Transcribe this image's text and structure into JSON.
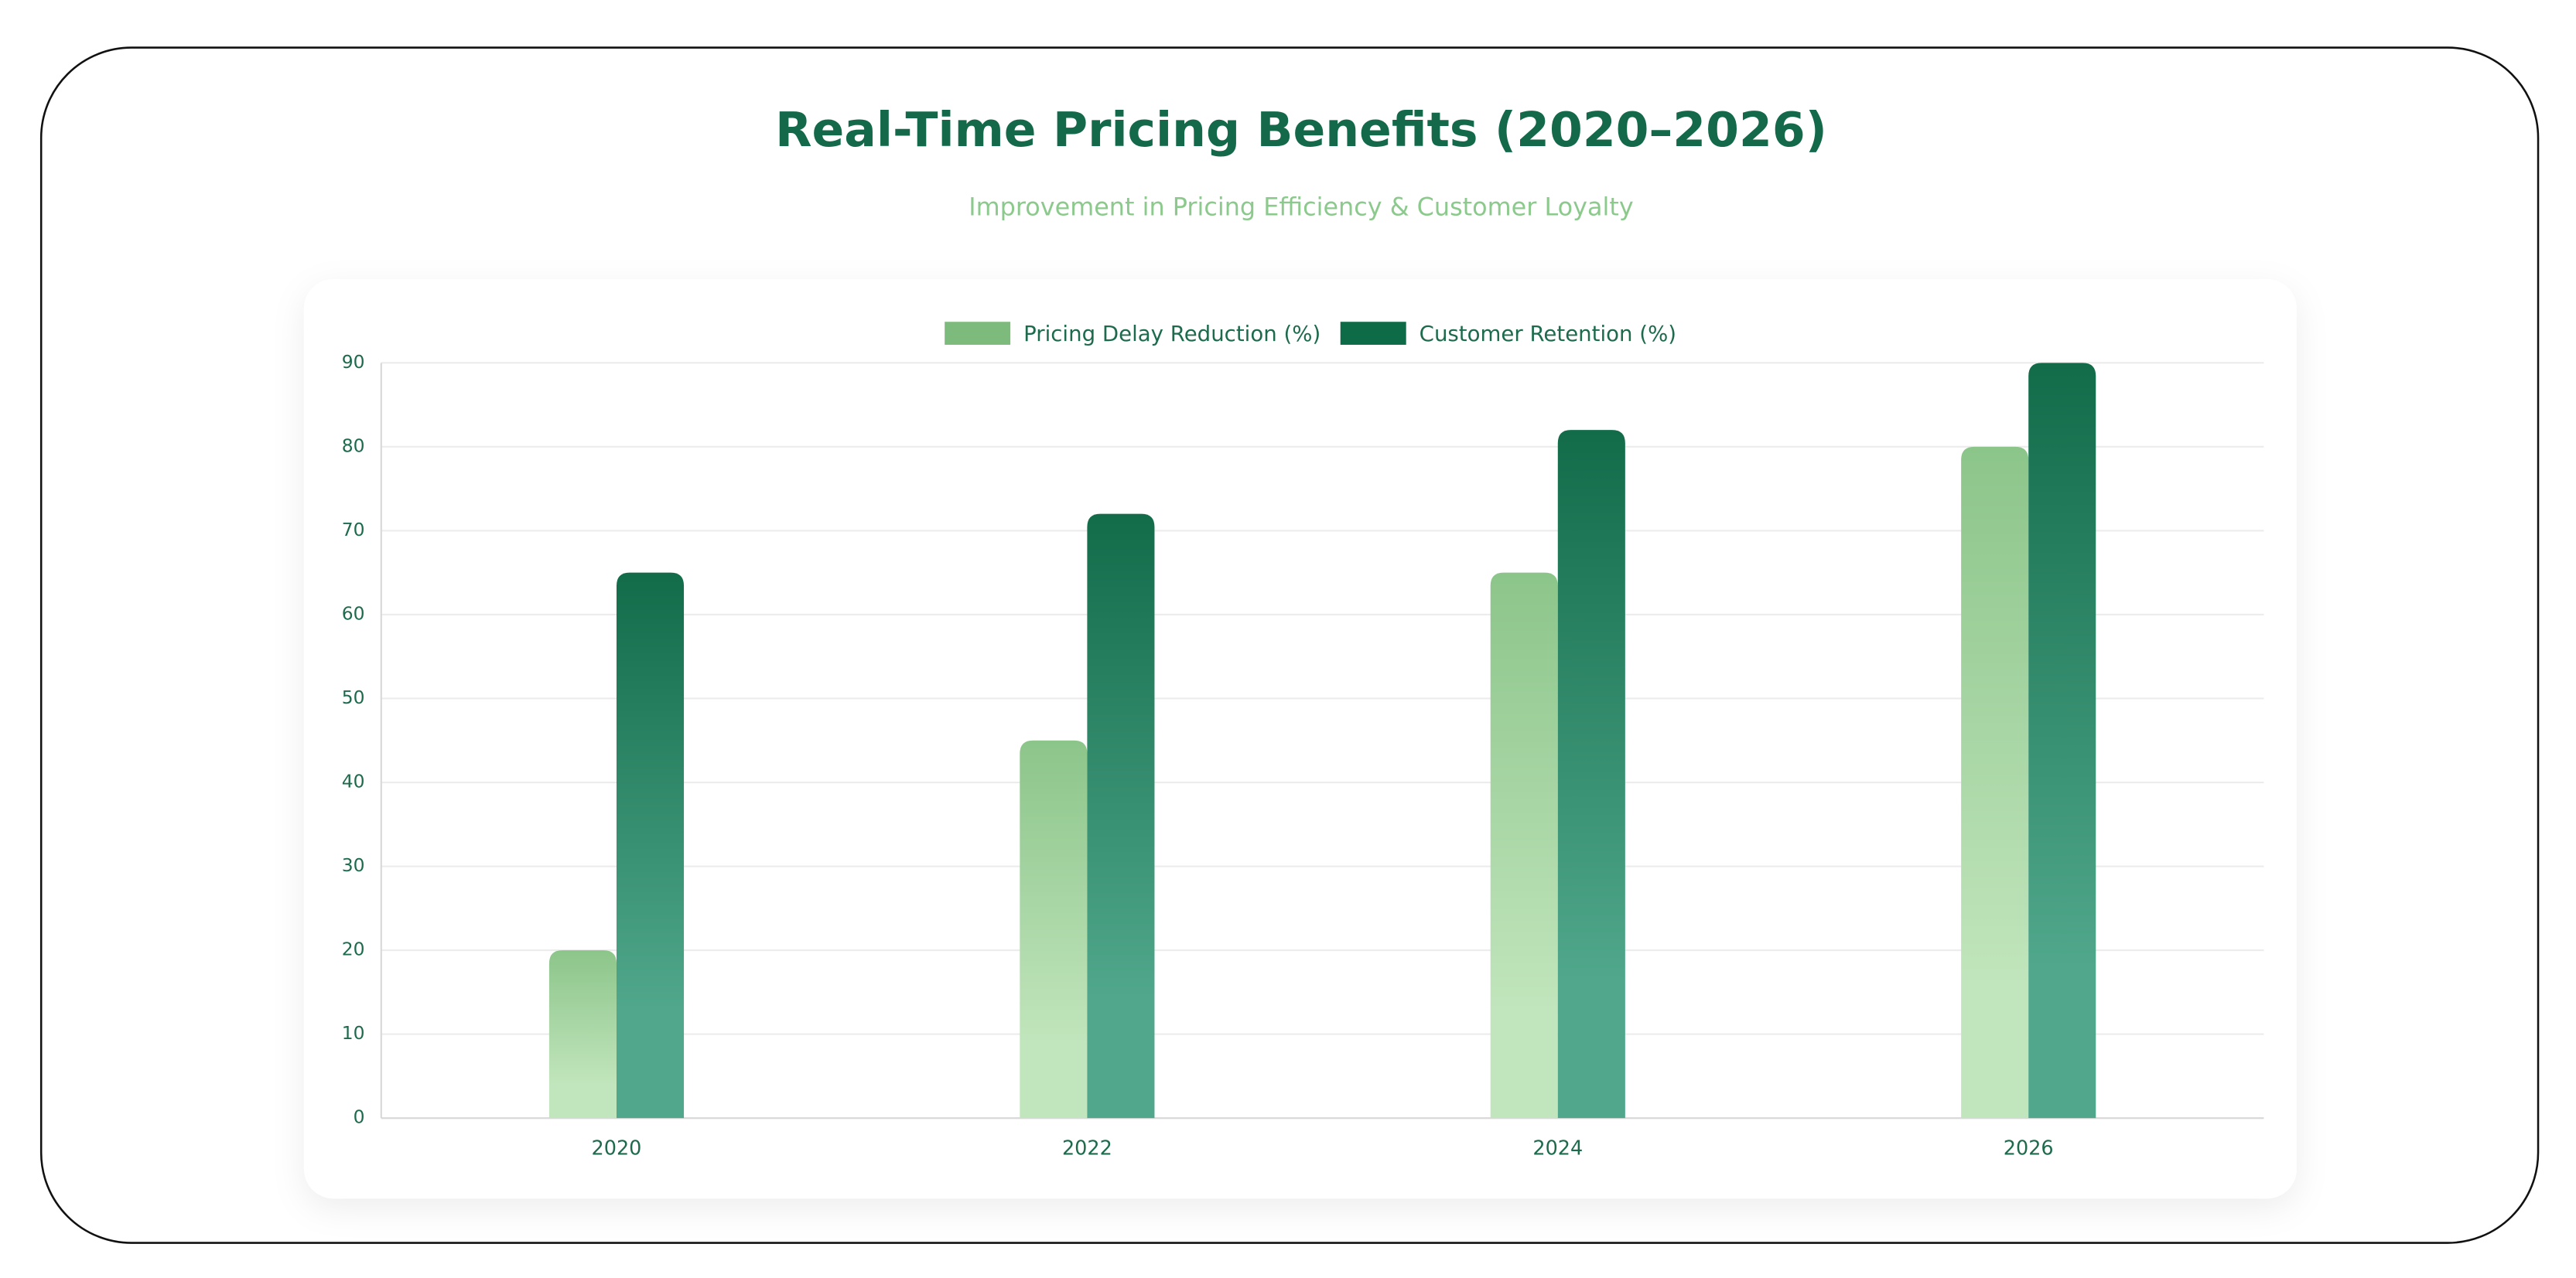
{
  "chart_data": {
    "type": "bar",
    "title": "Real-Time Pricing Benefits (2020–2026)",
    "subtitle": "Improvement in Pricing Efficiency & Customer Loyalty",
    "categories": [
      "2020",
      "2022",
      "2024",
      "2026"
    ],
    "series": [
      {
        "name": "Pricing Delay Reduction (%)",
        "color": "#7dbb7d",
        "values": [
          20,
          45,
          65,
          80
        ]
      },
      {
        "name": "Customer Retention (%)",
        "color": "#0e6b47",
        "values": [
          65,
          72,
          82,
          90
        ]
      }
    ],
    "ylim": [
      0,
      90
    ],
    "yticks": [
      0,
      10,
      20,
      30,
      40,
      50,
      60,
      70,
      80,
      90
    ],
    "grid": true,
    "legend": "top"
  }
}
